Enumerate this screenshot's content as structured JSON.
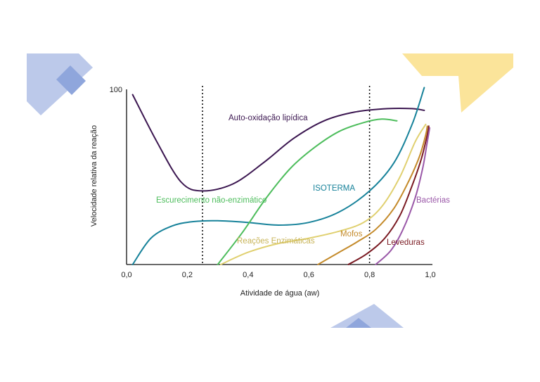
{
  "chart_data": {
    "type": "line",
    "title": "",
    "xlabel": "Atividade de água (aw)",
    "ylabel": "Velocidade relativa da reação",
    "xlim": [
      0.0,
      1.0
    ],
    "ylim": [
      0,
      100
    ],
    "x_ticks": [
      "0,0",
      "0,2",
      "0,4",
      "0,6",
      "0,8",
      "1,0"
    ],
    "y_ticks": [
      "100"
    ],
    "grid": false,
    "legend": "none",
    "reference_lines_x": [
      0.25,
      0.8
    ],
    "series": [
      {
        "name": "Auto-oxidação   lipídica",
        "color": "#3b1650",
        "x": [
          0.02,
          0.1,
          0.18,
          0.25,
          0.35,
          0.45,
          0.55,
          0.65,
          0.75,
          0.86,
          0.94,
          0.98
        ],
        "y": [
          97,
          70,
          47,
          42,
          46,
          58,
          72,
          82,
          87,
          89,
          89,
          88
        ]
      },
      {
        "name": "ISOTERMA",
        "color": "#17829a",
        "x": [
          0.02,
          0.08,
          0.15,
          0.22,
          0.3,
          0.4,
          0.5,
          0.6,
          0.7,
          0.8,
          0.88,
          0.94,
          0.98
        ],
        "y": [
          0,
          15,
          22,
          24.5,
          25,
          24,
          22.5,
          24,
          30,
          42,
          58,
          80,
          101
        ]
      },
      {
        "name": "Escurecimento   não-enzimático",
        "color": "#4dbd5c",
        "x": [
          0.3,
          0.38,
          0.46,
          0.54,
          0.62,
          0.7,
          0.78,
          0.84,
          0.89
        ],
        "y": [
          0,
          18,
          38,
          55,
          67,
          76,
          81,
          83,
          82
        ]
      },
      {
        "name": "Reações   Enzimáticas",
        "color": "#e0d070",
        "x": [
          0.31,
          0.4,
          0.5,
          0.6,
          0.7,
          0.78,
          0.84,
          0.9,
          0.95,
          0.985
        ],
        "y": [
          0,
          7,
          12,
          15,
          19,
          24,
          33,
          50,
          70,
          80
        ]
      },
      {
        "name": "Mofos",
        "color": "#c48a2a",
        "x": [
          0.63,
          0.7,
          0.76,
          0.82,
          0.88,
          0.93,
          0.965,
          0.985,
          0.99
        ],
        "y": [
          0,
          7,
          13,
          20,
          32,
          48,
          62,
          74,
          79
        ]
      },
      {
        "name": "Leveduras",
        "color": "#7a1a22",
        "x": [
          0.73,
          0.79,
          0.85,
          0.9,
          0.94,
          0.97,
          0.99,
          0.995
        ],
        "y": [
          0,
          6,
          15,
          28,
          45,
          60,
          74,
          79
        ]
      },
      {
        "name": "Bactérias",
        "color": "#9a58a8",
        "x": [
          0.82,
          0.87,
          0.91,
          0.95,
          0.975,
          0.99,
          0.998
        ],
        "y": [
          0,
          8,
          20,
          38,
          55,
          70,
          78
        ]
      }
    ]
  }
}
